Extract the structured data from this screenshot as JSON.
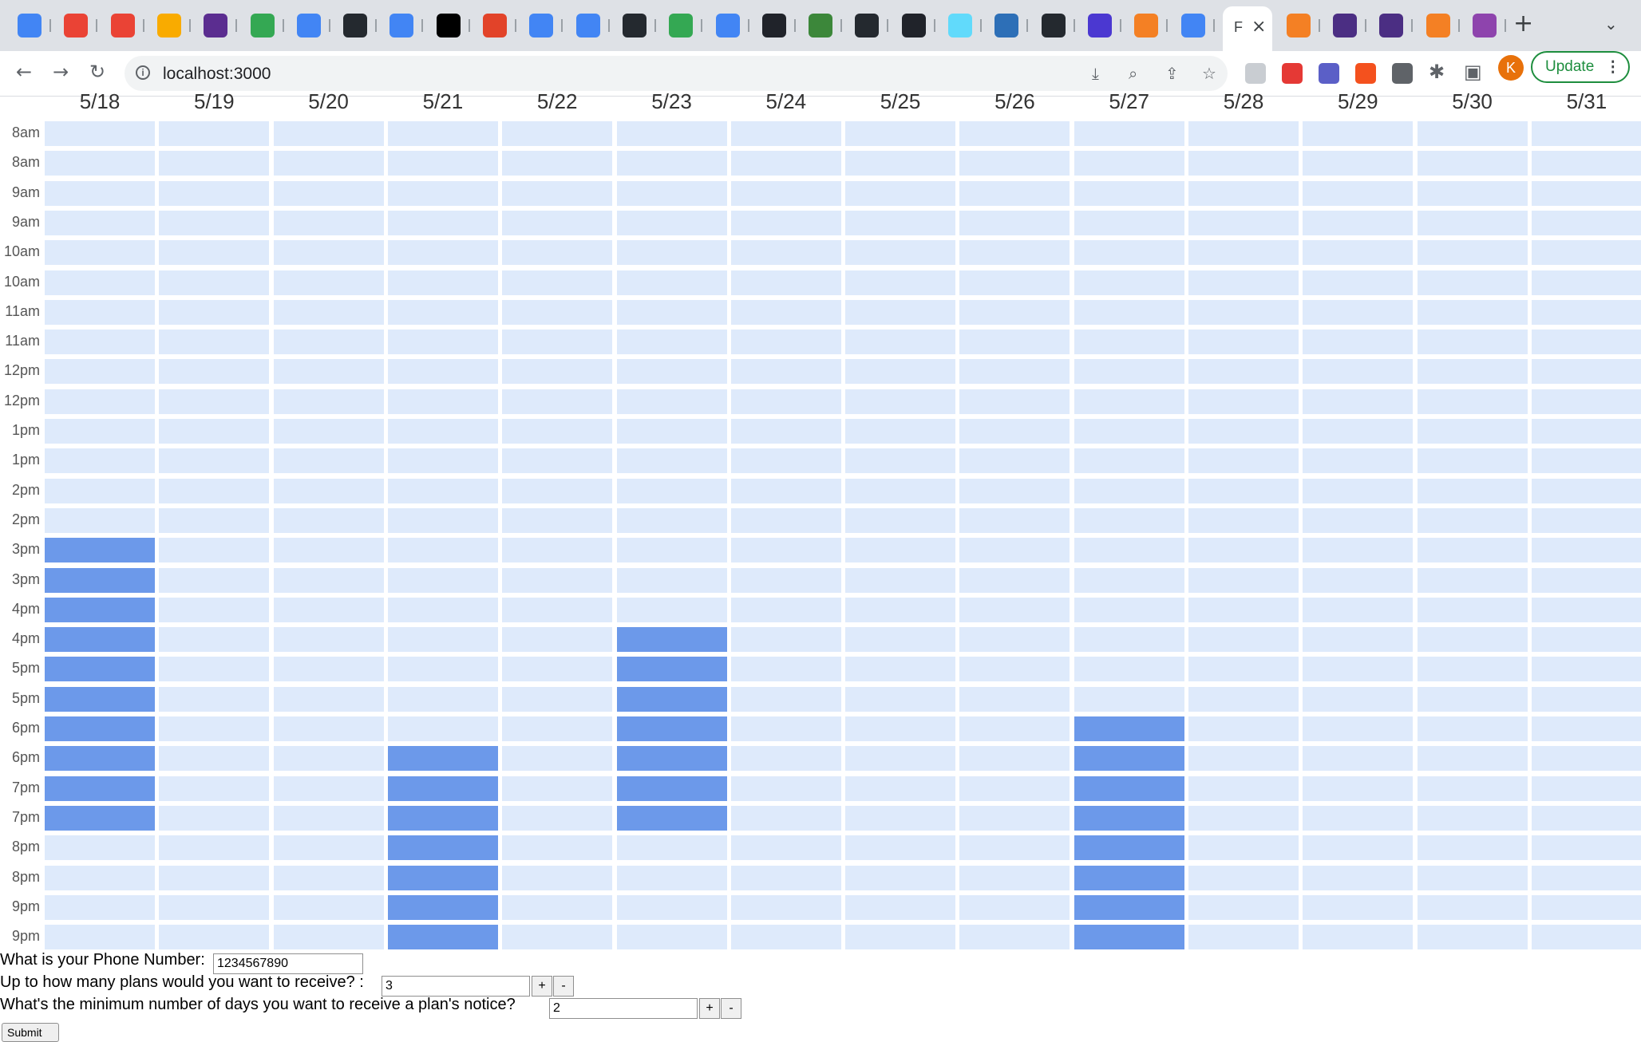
{
  "browser": {
    "url": "localhost:3000",
    "update_label": "Update",
    "profile_initial": "K",
    "active_tab_label": "F",
    "tab_colors": [
      "#4285f4",
      "#ea4335",
      "#ea4335",
      "#f9ab00",
      "#5b2d90",
      "#34a853",
      "#4285f4",
      "#24292f",
      "#4285f4",
      "#000000",
      "#e24329",
      "#4285f4",
      "#4285f4",
      "#24292f",
      "#34a853",
      "#4285f4",
      "#20232a",
      "#3c873a",
      "#24292f",
      "#20232a",
      "#61dafb",
      "#2d6fb7",
      "#24292f",
      "#4b38d1",
      "#f48024",
      "#4285f4",
      "#f48024",
      "#4b2e83",
      "#4b2e83",
      "#f48024",
      "#8e44ad"
    ]
  },
  "calendar": {
    "days": [
      "5/18",
      "5/19",
      "5/20",
      "5/21",
      "5/22",
      "5/23",
      "5/24",
      "5/25",
      "5/26",
      "5/27",
      "5/28",
      "5/29",
      "5/30",
      "5/31"
    ],
    "times": [
      "8am",
      "8am",
      "9am",
      "9am",
      "10am",
      "10am",
      "11am",
      "11am",
      "12pm",
      "12pm",
      "1pm",
      "1pm",
      "2pm",
      "2pm",
      "3pm",
      "3pm",
      "4pm",
      "4pm",
      "5pm",
      "5pm",
      "6pm",
      "6pm",
      "7pm",
      "7pm",
      "8pm",
      "8pm",
      "9pm",
      "9pm"
    ],
    "selected": [
      {
        "day": 0,
        "from": 14,
        "to": 23
      },
      {
        "day": 3,
        "from": 21,
        "to": 27
      },
      {
        "day": 5,
        "from": 17,
        "to": 23
      },
      {
        "day": 9,
        "from": 20,
        "to": 27
      }
    ],
    "colors": {
      "empty": "#deeafb",
      "selected": "#6c99ea"
    }
  },
  "form": {
    "phone_label": "What is your Phone Number:",
    "phone_value": "1234567890",
    "plans_label": "Up to how many plans would you want to receive? :",
    "plans_value": "3",
    "notice_label": "What's the minimum number of days you want to receive a plan's notice?",
    "notice_value": "2",
    "plus": "+",
    "minus": "-",
    "submit_label": "Submit"
  }
}
